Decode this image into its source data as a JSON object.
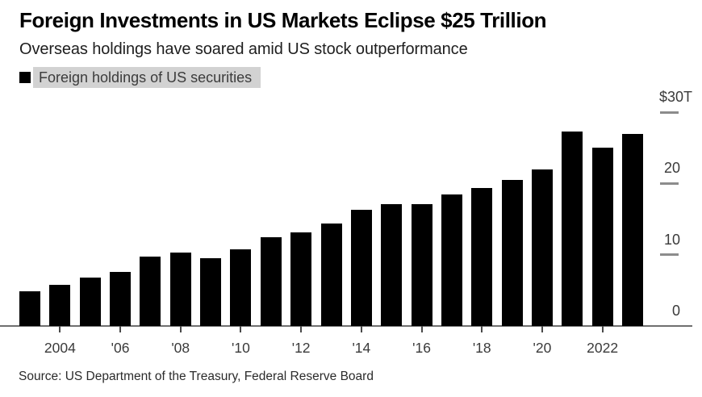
{
  "title": "Foreign Investments in US Markets Eclipse $25 Trillion",
  "subtitle": "Overseas holdings have soared amid US stock outperformance",
  "legend": {
    "label": "Foreign holdings of US securities",
    "swatch_color": "#000000",
    "highlight_color": "#d2d2d2"
  },
  "source": "Source: US Department of the Treasury, Federal Reserve Board",
  "colors": {
    "bar": "#000000",
    "axis_line": "#6f6f6f",
    "tick_dash": "#8c8c8c",
    "tick_label": "#3a3a3a"
  },
  "chart_data": {
    "type": "bar",
    "title": "Foreign Investments in US Markets Eclipse $25 Trillion",
    "subtitle": "Overseas holdings have soared amid US stock outperformance",
    "series_name": "Foreign holdings of US securities",
    "unit": "USD trillions",
    "categories": [
      2003,
      2004,
      2005,
      2006,
      2007,
      2008,
      2009,
      2010,
      2011,
      2012,
      2013,
      2014,
      2015,
      2016,
      2017,
      2018,
      2019,
      2020,
      2021,
      2022,
      2023
    ],
    "values": [
      4.9,
      5.8,
      6.8,
      7.6,
      9.7,
      10.3,
      9.5,
      10.7,
      12.4,
      13.1,
      14.4,
      16.3,
      17.1,
      17.1,
      18.4,
      19.4,
      20.5,
      22.0,
      27.3,
      25.0,
      26.9
    ],
    "ylim": [
      0,
      30
    ],
    "yticks": [
      {
        "label": "$30T",
        "value": 30,
        "dash": true
      },
      {
        "label": "20",
        "value": 20,
        "dash": true
      },
      {
        "label": "10",
        "value": 10,
        "dash": true
      },
      {
        "label": "0",
        "value": 0,
        "dash": false
      }
    ],
    "xticks": [
      {
        "label": "2004",
        "year": 2004
      },
      {
        "label": "'06",
        "year": 2006
      },
      {
        "label": "'08",
        "year": 2008
      },
      {
        "label": "'10",
        "year": 2010
      },
      {
        "label": "'12",
        "year": 2012
      },
      {
        "label": "'14",
        "year": 2014
      },
      {
        "label": "'16",
        "year": 2016
      },
      {
        "label": "'18",
        "year": 2018
      },
      {
        "label": "'20",
        "year": 2020
      },
      {
        "label": "2022",
        "year": 2022
      }
    ],
    "legend_position": "top-left",
    "grid": "right-edge-dashes",
    "ylabel": "",
    "xlabel": ""
  }
}
